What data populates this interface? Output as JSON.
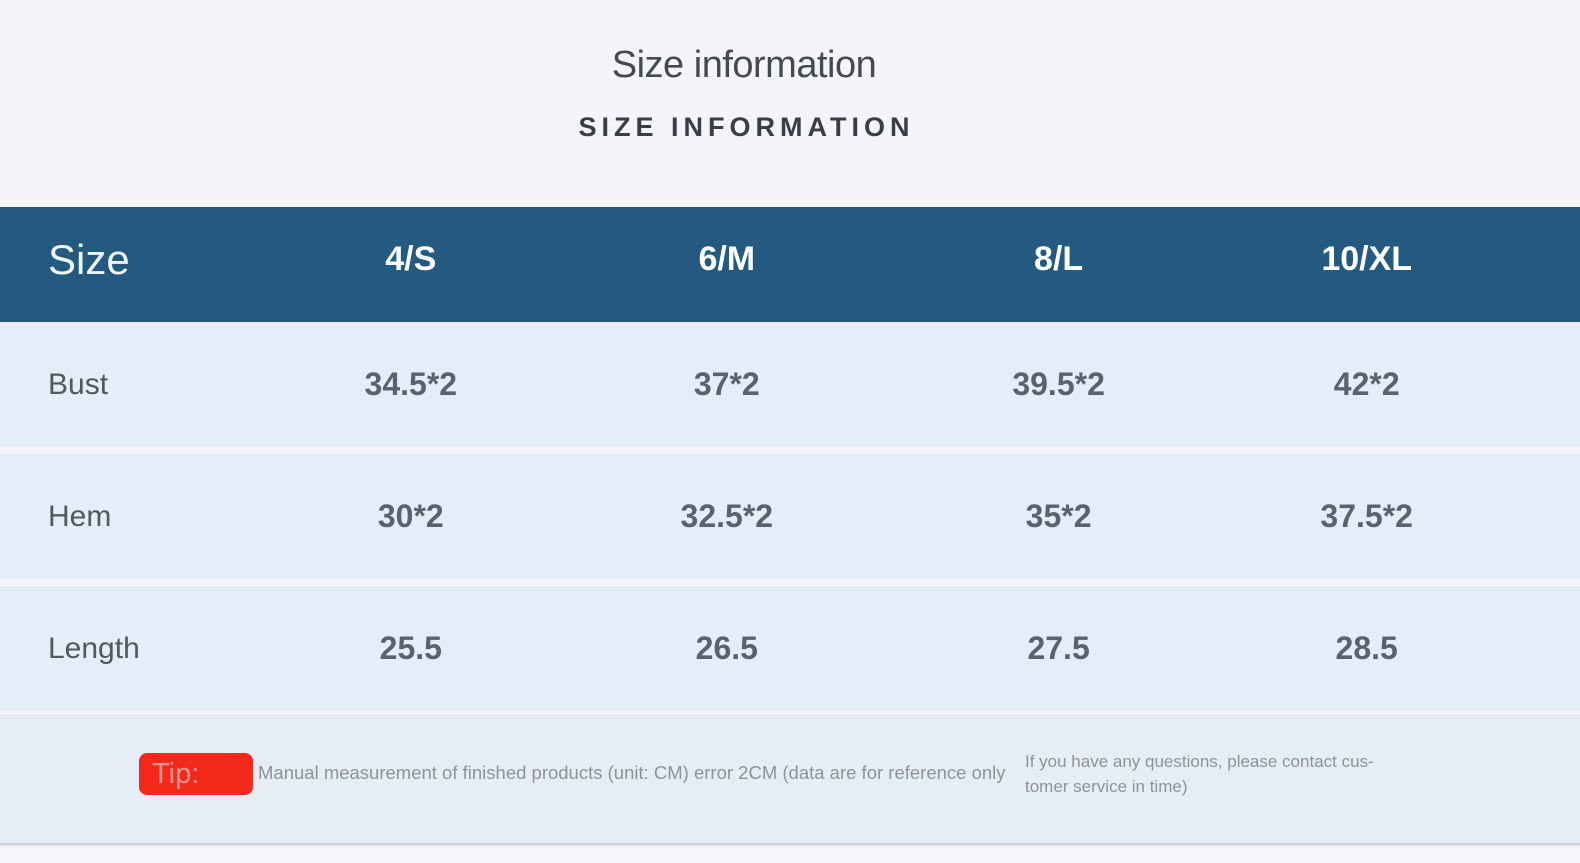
{
  "header": {
    "title": "Size information",
    "subtitle": "SIZE INFORMATION"
  },
  "table": {
    "columns": [
      "Size",
      "4/S",
      "6/M",
      "8/L",
      "10/XL"
    ],
    "rows": [
      {
        "label": "Bust",
        "values": [
          "34.5*2",
          "37*2",
          "39.5*2",
          "42*2"
        ]
      },
      {
        "label": "Hem",
        "values": [
          "30*2",
          "32.5*2",
          "35*2",
          "37.5*2"
        ]
      },
      {
        "label": "Length",
        "values": [
          "25.5",
          "26.5",
          "27.5",
          "28.5"
        ]
      }
    ]
  },
  "tip": {
    "badge_label": "Tip:",
    "note": "Manual measurement of finished products (unit: CM) error 2CM (data are for reference only",
    "contact_lines": [
      "If you have any questions, please contact cus-",
      "tomer service in time)"
    ]
  },
  "colors": {
    "page_bg": "#f4f5fa",
    "table_header_bg": "#255a80",
    "table_row_bg": "#e5edf8",
    "tip_row_bg": "#e7edf6",
    "tip_badge_red": "#f5281c",
    "header_text": "#ffffff",
    "value_text": "#5a636d",
    "note_text": "#8d939c"
  }
}
